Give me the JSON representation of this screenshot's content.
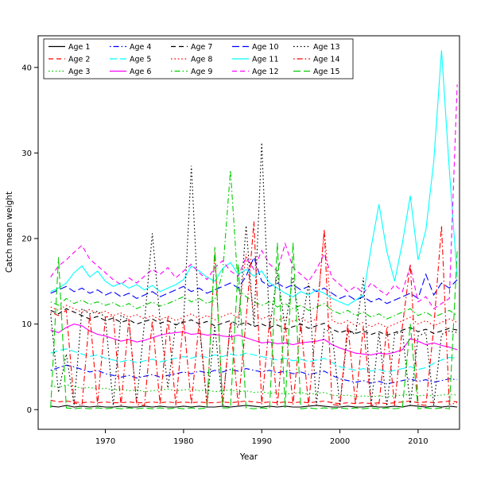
{
  "figure": {
    "background": "#ffffff",
    "border_color": "#000000"
  },
  "chart_data": {
    "type": "line",
    "title": "",
    "xlabel": "Year",
    "ylabel": "Catch mean weight",
    "x_ticks": [
      1970,
      1980,
      1990,
      2000,
      2010
    ],
    "y_ticks": [
      0,
      10,
      20,
      30,
      40
    ],
    "xlim": [
      1961.4,
      2015.3
    ],
    "ylim": [
      -2.3,
      43.7
    ],
    "grid": false,
    "legend": {
      "position": "top-left",
      "ncol": 5,
      "fill_order": "column-major",
      "border": true
    },
    "x": [
      1963,
      1964,
      1965,
      1966,
      1967,
      1968,
      1969,
      1970,
      1971,
      1972,
      1973,
      1974,
      1975,
      1976,
      1977,
      1978,
      1979,
      1980,
      1981,
      1982,
      1983,
      1984,
      1985,
      1986,
      1987,
      1988,
      1989,
      1990,
      1991,
      1992,
      1993,
      1994,
      1995,
      1996,
      1997,
      1998,
      1999,
      2000,
      2001,
      2002,
      2003,
      2004,
      2005,
      2006,
      2007,
      2008,
      2009,
      2010,
      2011,
      2012,
      2013,
      2014,
      2015
    ],
    "series": [
      {
        "name": "Age 1",
        "color": "#000000",
        "linetype": "solid",
        "values": [
          0.4,
          0.3,
          0.5,
          0.3,
          0.4,
          0.3,
          0.4,
          0.3,
          0.3,
          0.4,
          0.3,
          0.3,
          0.4,
          0.3,
          0.4,
          0.3,
          0.3,
          0.4,
          0.3,
          0.4,
          0.3,
          0.3,
          0.4,
          0.3,
          0.4,
          0.5,
          0.4,
          0.3,
          0.4,
          0.3,
          0.4,
          0.3,
          0.3,
          0.4,
          0.5,
          0.4,
          0.3,
          0.3,
          0.4,
          0.3,
          0.3,
          0.4,
          0.3,
          0.3,
          0.4,
          0.3,
          0.5,
          0.4,
          0.3,
          0.4,
          0.3,
          0.4,
          0.3
        ]
      },
      {
        "name": "Age 2",
        "color": "#FF0000",
        "linetype": "dashed",
        "values": [
          1.1,
          0.9,
          1.0,
          0.9,
          0.8,
          0.9,
          0.8,
          0.9,
          0.8,
          0.8,
          0.9,
          0.8,
          0.8,
          0.9,
          0.8,
          0.9,
          0.8,
          0.9,
          0.8,
          0.9,
          0.8,
          0.8,
          0.9,
          0.8,
          0.9,
          1.0,
          0.9,
          0.8,
          0.9,
          0.8,
          0.9,
          0.8,
          0.9,
          0.8,
          0.9,
          1.0,
          0.8,
          0.7,
          0.8,
          0.7,
          0.8,
          0.7,
          0.8,
          0.7,
          0.8,
          0.9,
          1.0,
          0.8,
          0.9,
          0.8,
          0.9,
          1.0,
          0.9
        ]
      },
      {
        "name": "Age 3",
        "color": "#00CD00",
        "linetype": "dotted",
        "values": [
          2.8,
          2.6,
          2.9,
          2.7,
          2.5,
          2.6,
          2.4,
          2.5,
          2.3,
          2.4,
          2.2,
          2.3,
          2.1,
          2.2,
          2.3,
          2.4,
          2.2,
          2.3,
          2.4,
          2.2,
          2.3,
          2.1,
          2.2,
          2.3,
          2.1,
          2.2,
          2.0,
          2.1,
          1.9,
          2.0,
          1.8,
          1.9,
          2.0,
          1.8,
          1.9,
          2.0,
          1.7,
          1.6,
          1.7,
          1.5,
          1.6,
          1.5,
          1.6,
          1.5,
          1.6,
          1.7,
          1.8,
          1.6,
          1.7,
          1.6,
          1.7,
          1.8,
          1.7
        ]
      },
      {
        "name": "Age 4",
        "color": "#0000FF",
        "linetype": "dotdash",
        "values": [
          4.6,
          4.9,
          5.2,
          5.0,
          4.7,
          4.4,
          4.6,
          4.2,
          4.0,
          3.8,
          4.0,
          3.7,
          3.9,
          4.1,
          3.8,
          4.0,
          4.2,
          4.4,
          4.2,
          4.5,
          4.3,
          4.6,
          4.4,
          4.7,
          4.5,
          4.8,
          4.6,
          4.4,
          4.6,
          4.3,
          4.5,
          4.2,
          4.4,
          4.1,
          4.3,
          4.5,
          4.0,
          3.6,
          3.4,
          3.2,
          3.4,
          3.1,
          3.3,
          3.0,
          3.2,
          3.4,
          3.6,
          3.3,
          3.5,
          3.2,
          3.4,
          3.6,
          3.5
        ]
      },
      {
        "name": "Age 5",
        "color": "#00FFFF",
        "linetype": "longdash",
        "values": [
          6.6,
          6.9,
          7.1,
          6.8,
          6.5,
          6.2,
          6.4,
          6.0,
          5.8,
          5.6,
          5.8,
          5.5,
          5.7,
          5.9,
          5.6,
          5.8,
          6.0,
          6.2,
          6.0,
          6.3,
          6.1,
          6.4,
          6.2,
          6.5,
          6.3,
          6.6,
          6.4,
          6.2,
          6.0,
          5.8,
          6.0,
          5.7,
          5.9,
          5.6,
          5.8,
          6.0,
          5.5,
          5.0,
          4.8,
          4.6,
          4.8,
          4.5,
          4.7,
          4.4,
          4.6,
          4.8,
          5.0,
          4.7,
          4.9,
          5.4,
          5.8,
          6.1,
          6.0
        ]
      },
      {
        "name": "Age 6",
        "color": "#FF00FF",
        "linetype": "solid",
        "values": [
          9.3,
          9.0,
          9.6,
          10.0,
          9.8,
          9.2,
          8.8,
          8.6,
          8.3,
          8.0,
          8.2,
          7.9,
          8.1,
          8.4,
          8.7,
          8.9,
          9.0,
          9.1,
          8.8,
          8.9,
          8.7,
          8.8,
          8.6,
          8.5,
          8.7,
          8.4,
          8.1,
          7.8,
          7.9,
          7.7,
          7.8,
          7.6,
          7.8,
          7.9,
          8.0,
          8.2,
          7.6,
          7.2,
          6.9,
          6.6,
          6.5,
          6.4,
          6.6,
          6.5,
          6.7,
          7.0,
          8.3,
          8.0,
          7.6,
          7.8,
          7.5,
          7.3,
          7.0
        ]
      },
      {
        "name": "Age 7",
        "color": "#000000",
        "linetype": "dashed",
        "values": [
          11.6,
          11.2,
          11.8,
          11.4,
          11.0,
          10.6,
          10.9,
          10.4,
          10.7,
          10.2,
          10.5,
          10.0,
          10.3,
          10.6,
          10.1,
          10.4,
          9.9,
          10.2,
          10.5,
          10.0,
          10.3,
          9.8,
          10.1,
          10.4,
          9.9,
          10.2,
          9.7,
          10.0,
          9.6,
          9.9,
          9.4,
          9.7,
          10.0,
          9.5,
          9.8,
          10.1,
          9.4,
          9.0,
          9.3,
          8.9,
          9.2,
          8.8,
          9.1,
          8.7,
          9.0,
          9.3,
          9.6,
          9.1,
          9.4,
          8.9,
          9.2,
          9.5,
          9.3
        ]
      },
      {
        "name": "Age 8",
        "color": "#FF0000",
        "linetype": "dotted",
        "values": [
          12.0,
          11.6,
          12.2,
          11.8,
          11.4,
          11.7,
          11.2,
          11.5,
          11.0,
          11.3,
          10.8,
          11.1,
          10.6,
          11.0,
          10.5,
          10.9,
          10.4,
          10.8,
          11.2,
          10.6,
          11.0,
          10.5,
          10.9,
          11.3,
          10.7,
          18.2,
          11.0,
          10.6,
          11.0,
          10.4,
          10.8,
          10.3,
          10.7,
          10.2,
          10.6,
          21.0,
          10.4,
          10.0,
          10.4,
          9.8,
          10.2,
          9.7,
          10.1,
          9.6,
          10.0,
          10.4,
          10.8,
          10.0,
          10.4,
          9.8,
          10.2,
          10.6,
          10.2
        ]
      },
      {
        "name": "Age 9",
        "color": "#00CD00",
        "linetype": "dotdash",
        "values": [
          12.6,
          12.2,
          13.0,
          12.4,
          12.8,
          12.3,
          12.6,
          12.2,
          12.5,
          12.0,
          12.4,
          11.8,
          12.2,
          12.6,
          12.1,
          12.4,
          12.8,
          13.2,
          12.6,
          13.0,
          12.4,
          12.8,
          16.0,
          28.0,
          14.0,
          13.2,
          12.6,
          12.2,
          12.6,
          12.0,
          12.4,
          11.8,
          12.2,
          11.6,
          12.0,
          12.4,
          11.6,
          11.2,
          11.6,
          11.0,
          11.4,
          10.8,
          11.2,
          10.6,
          11.0,
          11.4,
          11.8,
          11.0,
          11.4,
          10.8,
          11.2,
          11.6,
          11.0
        ]
      },
      {
        "name": "Age 10",
        "color": "#0000FF",
        "linetype": "longdash",
        "values": [
          13.6,
          14.0,
          14.4,
          13.8,
          14.2,
          13.6,
          14.0,
          13.4,
          13.8,
          13.2,
          13.6,
          13.0,
          13.4,
          13.8,
          13.2,
          13.6,
          14.0,
          14.4,
          13.8,
          14.2,
          13.6,
          14.0,
          14.4,
          14.8,
          14.2,
          15.6,
          17.8,
          15.0,
          14.4,
          14.8,
          14.2,
          14.6,
          14.0,
          14.4,
          13.8,
          14.2,
          13.6,
          13.0,
          13.4,
          12.8,
          13.2,
          12.6,
          13.0,
          12.4,
          12.8,
          13.2,
          13.6,
          13.0,
          15.8,
          13.4,
          14.8,
          14.2,
          15.2
        ]
      },
      {
        "name": "Age 11",
        "color": "#00FFFF",
        "linetype": "solid",
        "values": [
          13.8,
          14.2,
          14.8,
          16.0,
          16.8,
          15.5,
          16.2,
          15.0,
          14.4,
          14.8,
          14.2,
          14.6,
          14.0,
          14.5,
          13.8,
          14.2,
          14.6,
          15.2,
          16.8,
          16.2,
          15.5,
          15.0,
          16.5,
          17.2,
          15.8,
          16.4,
          15.6,
          16.2,
          14.8,
          14.2,
          13.6,
          13.2,
          13.8,
          13.4,
          14.0,
          13.6,
          13.0,
          12.6,
          12.2,
          12.8,
          13.4,
          19.0,
          24.0,
          18.5,
          15.0,
          19.5,
          25.0,
          17.5,
          21.0,
          29.0,
          42.0,
          28.0,
          15.5
        ]
      },
      {
        "name": "Age 12",
        "color": "#FF00FF",
        "linetype": "dashed",
        "values": [
          15.5,
          16.8,
          17.5,
          18.4,
          19.2,
          17.6,
          16.8,
          16.0,
          15.2,
          14.6,
          15.4,
          14.8,
          15.6,
          16.4,
          15.8,
          16.6,
          15.4,
          16.2,
          17.0,
          16.0,
          15.2,
          16.6,
          17.4,
          16.2,
          15.6,
          17.8,
          16.4,
          18.6,
          17.0,
          16.2,
          19.4,
          16.6,
          15.8,
          15.0,
          16.4,
          18.2,
          15.4,
          14.6,
          13.8,
          14.4,
          13.6,
          14.8,
          14.0,
          13.4,
          14.6,
          13.8,
          16.8,
          12.6,
          13.2,
          11.8,
          12.4,
          13.0,
          38.0
        ]
      },
      {
        "name": "Age 13",
        "color": "#000000",
        "linetype": "dotted",
        "values": [
          11.2,
          2.0,
          6.5,
          0.5,
          11.8,
          11.2,
          11.5,
          10.8,
          0.5,
          11.0,
          10.5,
          0.8,
          10.2,
          20.6,
          10.4,
          2.5,
          10.0,
          10.3,
          28.5,
          10.0,
          0.5,
          9.8,
          0.4,
          10.2,
          9.6,
          21.5,
          9.8,
          31.2,
          9.4,
          16.0,
          9.6,
          15.5,
          9.2,
          14.8,
          0.5,
          9.4,
          9.0,
          0.4,
          9.2,
          8.8,
          15.4,
          0.5,
          9.0,
          0.4,
          8.8,
          9.2,
          0.5,
          8.6,
          9.0,
          0.5,
          8.8,
          9.2,
          9.0
        ]
      },
      {
        "name": "Age 14",
        "color": "#FF0000",
        "linetype": "dotdash",
        "values": [
          11.4,
          11.0,
          11.6,
          0.8,
          0.5,
          11.2,
          0.6,
          10.8,
          11.0,
          0.5,
          10.6,
          0.6,
          0.5,
          10.4,
          0.6,
          10.8,
          0.5,
          10.6,
          0.6,
          10.4,
          0.5,
          18.4,
          0.6,
          10.2,
          0.5,
          10.6,
          22.0,
          0.6,
          10.4,
          0.5,
          10.2,
          0.6,
          10.0,
          0.5,
          10.4,
          21.0,
          0.6,
          0.5,
          10.0,
          0.6,
          9.8,
          0.5,
          0.6,
          9.6,
          0.5,
          9.8,
          17.0,
          0.6,
          0.5,
          9.6,
          21.5,
          0.6,
          0.8
        ]
      },
      {
        "name": "Age 15",
        "color": "#00CD00",
        "linetype": "longdash",
        "values": [
          0.2,
          17.8,
          0.2,
          0.1,
          0.2,
          0.1,
          0.2,
          0.1,
          0.2,
          0.1,
          0.2,
          0.1,
          0.2,
          0.1,
          0.2,
          0.1,
          0.2,
          0.1,
          0.2,
          0.1,
          0.2,
          19.0,
          0.2,
          0.2,
          17.0,
          0.2,
          0.1,
          0.2,
          0.1,
          19.5,
          0.2,
          19.5,
          0.1,
          0.2,
          0.1,
          0.2,
          0.1,
          0.2,
          0.1,
          0.2,
          0.1,
          0.2,
          0.1,
          0.2,
          0.1,
          0.2,
          10.0,
          0.1,
          0.2,
          0.1,
          0.2,
          0.1,
          18.5
        ]
      }
    ]
  }
}
